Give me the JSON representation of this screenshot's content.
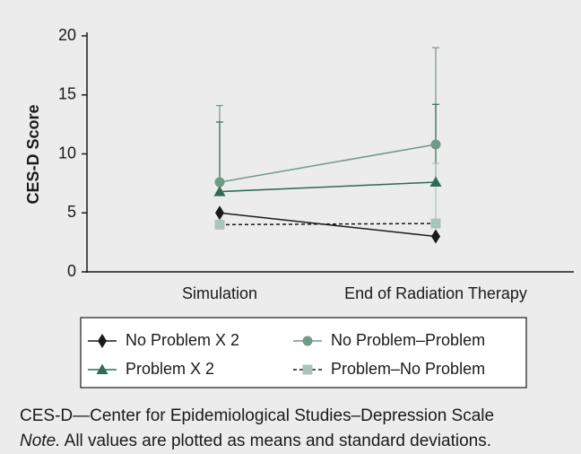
{
  "chart_data": {
    "type": "line",
    "y_label": "CES-D Score",
    "categories": [
      "Simulation",
      "End of Radiation Therapy"
    ],
    "ylim": [
      0,
      20
    ],
    "yticks": [
      0,
      5,
      10,
      15,
      20
    ],
    "series": [
      {
        "name": "No Problem X 2",
        "color": "#1a1a1a",
        "marker": "diamond",
        "dash": false,
        "values": [
          5.0,
          3.0
        ],
        "errors": [
          null,
          null
        ]
      },
      {
        "name": "No Problem–Problem",
        "color": "#6e9a86",
        "marker": "circle",
        "dash": false,
        "values": [
          7.6,
          10.8
        ],
        "errors": [
          6.5,
          8.2
        ]
      },
      {
        "name": "Problem X 2",
        "color": "#2f6b55",
        "marker": "triangle",
        "dash": false,
        "values": [
          6.8,
          7.6
        ],
        "errors": [
          5.9,
          6.6
        ]
      },
      {
        "name": "Problem–No Problem",
        "color": "#a9c4b8",
        "marker": "square",
        "dash": true,
        "values": [
          4.0,
          4.1
        ],
        "errors": [
          null,
          5.1
        ]
      }
    ],
    "caption": "CES-D—Center for Epidemiological Studies–Depression Scale",
    "note_label": "Note.",
    "note_text": "All values are plotted as means and standard deviations."
  }
}
